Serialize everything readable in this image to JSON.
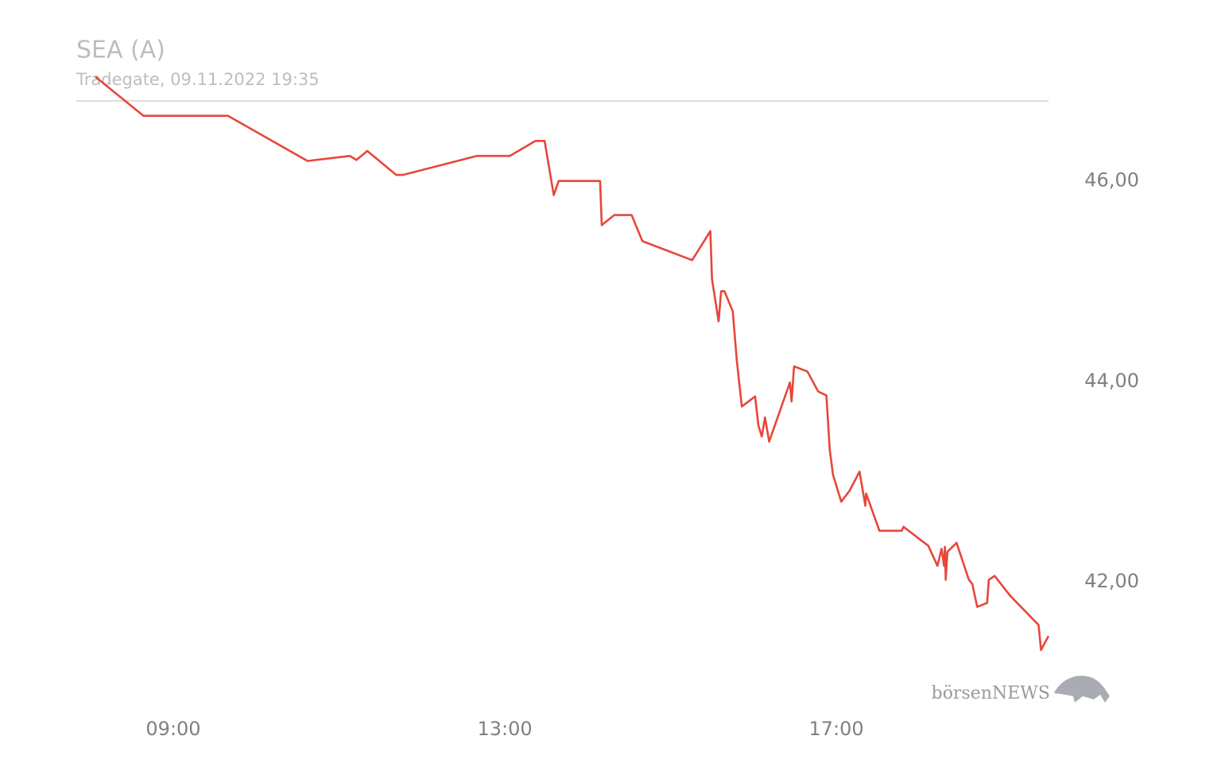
{
  "chart_data": {
    "type": "line",
    "title": "SEA (A)",
    "subtitle": "Tradegate, 09.11.2022 19:35",
    "watermark": "börsenNEWS",
    "x": [
      8.06,
      8.64,
      9.66,
      10.62,
      11.13,
      11.21,
      11.34,
      11.69,
      11.77,
      12.66,
      13.06,
      13.37,
      13.48,
      13.59,
      13.65,
      14.15,
      14.17,
      14.32,
      14.53,
      14.66,
      15.26,
      15.48,
      15.5,
      15.58,
      15.61,
      15.65,
      15.75,
      15.8,
      15.86,
      16.02,
      16.06,
      16.1,
      16.14,
      16.19,
      16.44,
      16.46,
      16.49,
      16.65,
      16.78,
      16.88,
      16.92,
      16.96,
      17.06,
      17.16,
      17.28,
      17.35,
      17.36,
      17.52,
      17.79,
      17.81,
      18.11,
      18.22,
      18.27,
      18.3,
      18.31,
      18.32,
      18.34,
      18.45,
      18.6,
      18.64,
      18.7,
      18.82,
      18.84,
      18.91,
      19.1,
      19.44,
      19.47,
      19.56
    ],
    "values": [
      47.04,
      46.65,
      46.65,
      46.2,
      46.25,
      46.21,
      46.3,
      46.06,
      46.06,
      46.25,
      46.25,
      46.4,
      46.4,
      45.86,
      46.0,
      46.0,
      45.56,
      45.66,
      45.66,
      45.4,
      45.21,
      45.5,
      45.02,
      44.6,
      44.9,
      44.9,
      44.7,
      44.2,
      43.75,
      43.85,
      43.56,
      43.45,
      43.64,
      43.4,
      43.99,
      43.8,
      44.15,
      44.1,
      43.9,
      43.86,
      43.32,
      43.07,
      42.8,
      42.91,
      43.1,
      42.76,
      42.88,
      42.51,
      42.51,
      42.55,
      42.36,
      42.16,
      42.33,
      42.16,
      42.35,
      42.02,
      42.3,
      42.39,
      42.02,
      41.98,
      41.75,
      41.79,
      42.02,
      42.06,
      41.86,
      41.57,
      41.32,
      41.46
    ],
    "color": "#e8463a",
    "xlim": [
      8.06,
      19.56
    ],
    "xticks": [
      {
        "value": 9,
        "label": "09:00"
      },
      {
        "value": 13,
        "label": "13:00"
      },
      {
        "value": 17,
        "label": "17:00"
      }
    ],
    "ylim": [
      41.2,
      47.1
    ],
    "yticks": [
      {
        "value": 42,
        "label": "42,00"
      },
      {
        "value": 44,
        "label": "44,00"
      },
      {
        "value": 46,
        "label": "46,00"
      }
    ],
    "grid": false
  }
}
